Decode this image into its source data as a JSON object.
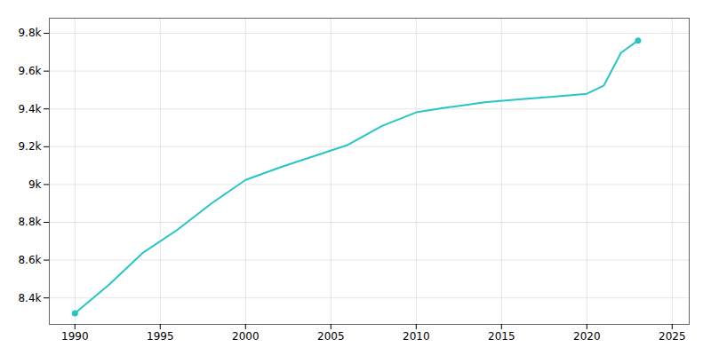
{
  "chart_data": {
    "type": "line",
    "x": [
      1990,
      1992,
      1994,
      1996,
      1998,
      2000,
      2002,
      2004,
      2006,
      2008,
      2010,
      2012,
      2014,
      2016,
      2018,
      2020,
      2021,
      2022,
      2023
    ],
    "values": [
      8319,
      8470,
      8640,
      8760,
      8900,
      9024,
      9090,
      9150,
      9210,
      9310,
      9382,
      9410,
      9435,
      9450,
      9465,
      9480,
      9524,
      9697,
      9762
    ],
    "color": "#26c6c6",
    "marker": "endpoints",
    "xlim": [
      1988.5,
      2026
    ],
    "xticks": [
      1990,
      1995,
      2000,
      2005,
      2010,
      2015,
      2020,
      2025
    ],
    "ylim": [
      8260,
      9880
    ],
    "yticks": [
      {
        "value": 8400,
        "label": "8.4k"
      },
      {
        "value": 8600,
        "label": "8.6k"
      },
      {
        "value": 8800,
        "label": "8.8k"
      },
      {
        "value": 9000,
        "label": "9k"
      },
      {
        "value": 9200,
        "label": "9.2k"
      },
      {
        "value": 9400,
        "label": "9.4k"
      },
      {
        "value": 9600,
        "label": "9.6k"
      },
      {
        "value": 9800,
        "label": "9.8k"
      }
    ],
    "grid": true
  }
}
